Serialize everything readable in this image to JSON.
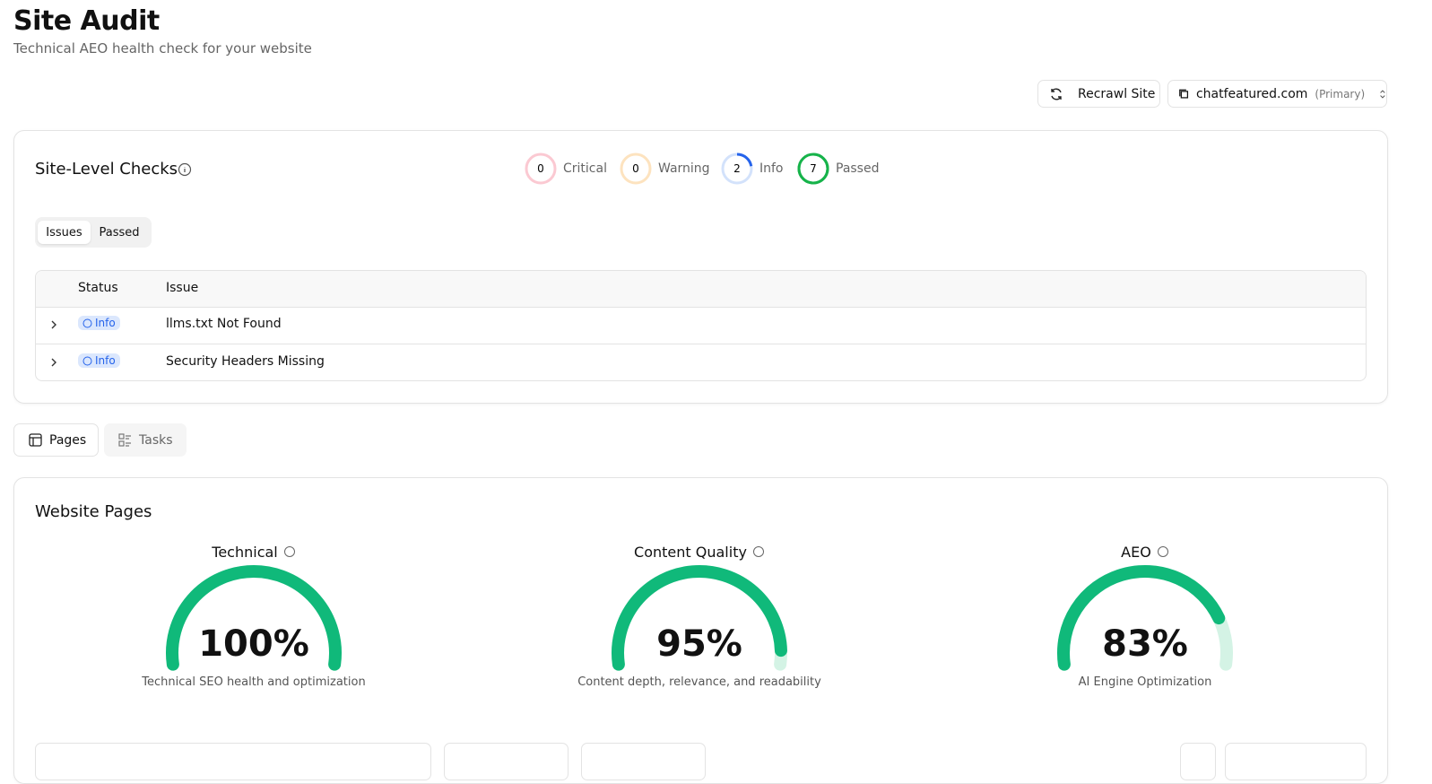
{
  "header": {
    "title": "Site Audit",
    "subtitle": "Technical AEO health check for your website"
  },
  "toolbar": {
    "recrawl": "Recrawl Site",
    "site": "chatfeatured.com",
    "site_tag": "(Primary)"
  },
  "site_checks": {
    "title": "Site-Level Checks",
    "summary": [
      {
        "label": "Critical",
        "count": 0
      },
      {
        "label": "Warning",
        "count": 0
      },
      {
        "label": "Info",
        "count": 2
      },
      {
        "label": "Passed",
        "count": 7
      }
    ],
    "tabs": [
      "Issues",
      "Passed"
    ],
    "table": {
      "columns": [
        "Status",
        "Issue"
      ],
      "rows": [
        [
          "Info",
          "llms.txt Not Found"
        ],
        [
          "Info",
          "Security Headers Missing"
        ]
      ]
    }
  },
  "view_tabs": [
    "Pages",
    "Tasks"
  ],
  "website_pages": {
    "title": "Website Pages",
    "gauges": [
      {
        "title": "Technical",
        "score": {
          "value": 100,
          "label": "100%"
        },
        "description": "Technical SEO health and optimization"
      },
      {
        "title": "Content Quality",
        "score": {
          "value": 95,
          "label": "95%"
        },
        "description": "Content depth, relevance, and readability"
      },
      {
        "title": "AEO",
        "score": {
          "value": 83,
          "label": "83%"
        },
        "description": "AI Engine Optimization"
      }
    ]
  }
}
